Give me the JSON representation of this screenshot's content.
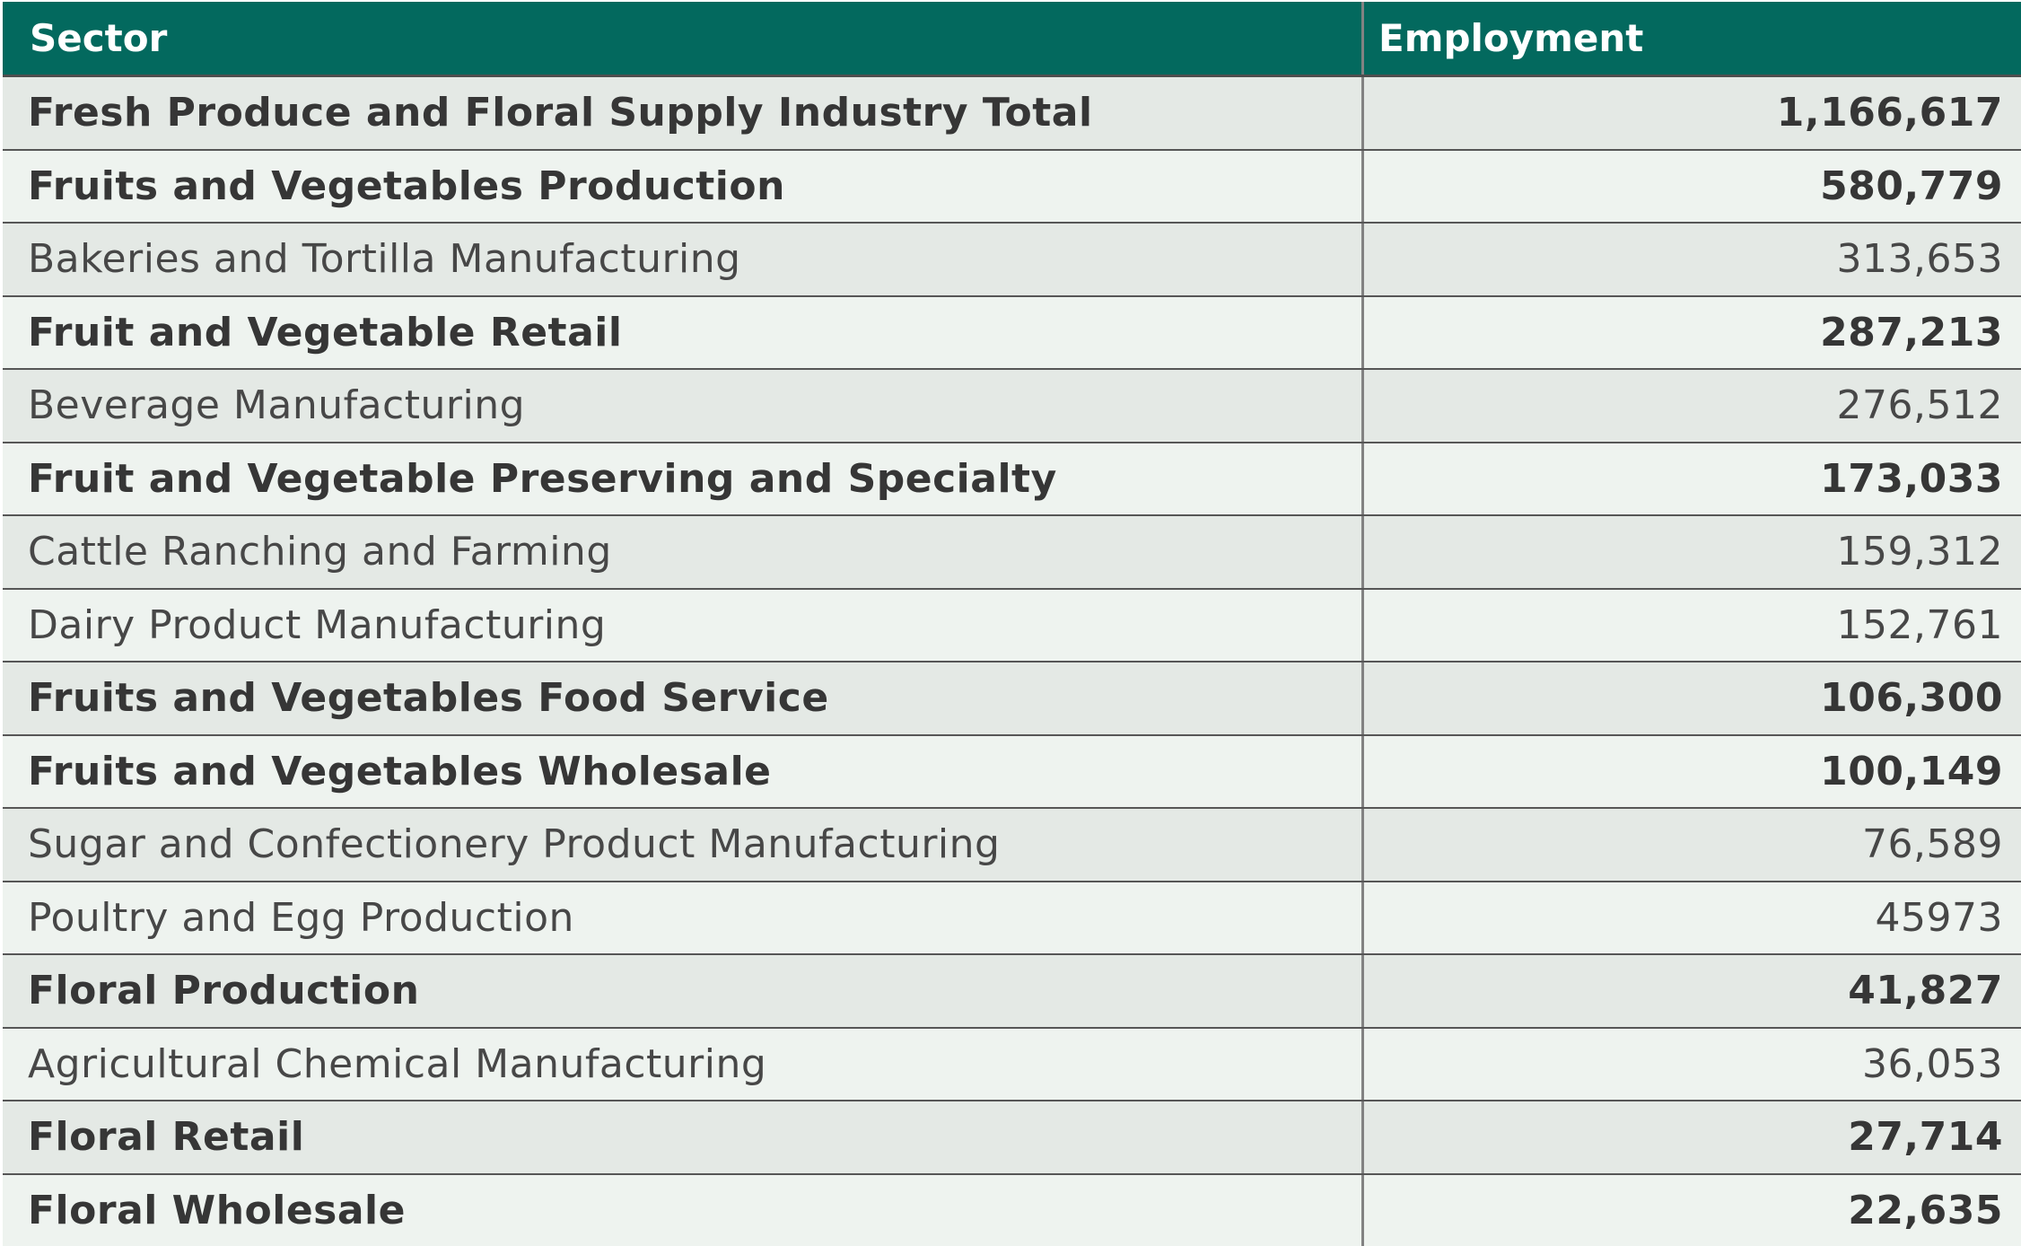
{
  "chart_data": {
    "type": "table",
    "columns": [
      "Sector",
      "Employment"
    ],
    "rows": [
      {
        "sector": "Fresh Produce and Floral Supply Industry Total",
        "employment": "1,166,617",
        "bold": true
      },
      {
        "sector": "Fruits and Vegetables Production",
        "employment": "580,779",
        "bold": true
      },
      {
        "sector": "Bakeries and Tortilla Manufacturing",
        "employment": "313,653",
        "bold": false
      },
      {
        "sector": "Fruit and Vegetable Retail",
        "employment": "287,213",
        "bold": true
      },
      {
        "sector": "Beverage Manufacturing",
        "employment": "276,512",
        "bold": false
      },
      {
        "sector": "Fruit and Vegetable Preserving and Specialty",
        "employment": "173,033",
        "bold": true
      },
      {
        "sector": "Cattle Ranching and Farming",
        "employment": "159,312",
        "bold": false
      },
      {
        "sector": "Dairy Product Manufacturing",
        "employment": "152,761",
        "bold": false
      },
      {
        "sector": "Fruits and Vegetables Food Service",
        "employment": "106,300",
        "bold": true
      },
      {
        "sector": "Fruits and Vegetables Wholesale",
        "employment": "100,149",
        "bold": true
      },
      {
        "sector": "Sugar and Confectionery Product Manufacturing",
        "employment": "76,589",
        "bold": false
      },
      {
        "sector": "Poultry and Egg Production",
        "employment": "45973",
        "bold": false
      },
      {
        "sector": "Floral Production",
        "employment": "41,827",
        "bold": true
      },
      {
        "sector": "Agricultural Chemical Manufacturing",
        "employment": "36,053",
        "bold": false
      },
      {
        "sector": "Floral Retail",
        "employment": "27,714",
        "bold": true
      },
      {
        "sector": "Floral Wholesale",
        "employment": "22,635",
        "bold": true
      }
    ]
  },
  "colors": {
    "header_background": "#03695e",
    "header_text": "#ffffff",
    "row_dark": "#e4e9e5",
    "row_light": "#eef3ef",
    "text_bold": "#363636",
    "text_regular": "#474747",
    "divider_vertical": "#828282",
    "divider_horizontal": "#565656"
  }
}
